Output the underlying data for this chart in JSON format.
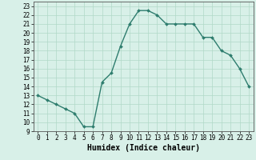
{
  "x": [
    0,
    1,
    2,
    3,
    4,
    5,
    6,
    7,
    8,
    9,
    10,
    11,
    12,
    13,
    14,
    15,
    16,
    17,
    18,
    19,
    20,
    21,
    22,
    23
  ],
  "y": [
    13,
    12.5,
    12,
    11.5,
    11,
    9.5,
    9.5,
    14.5,
    15.5,
    18.5,
    21,
    22.5,
    22.5,
    22,
    21,
    21,
    21,
    21,
    19.5,
    19.5,
    18,
    17.5,
    16,
    14
  ],
  "xlim": [
    -0.5,
    23.5
  ],
  "ylim": [
    9,
    23.5
  ],
  "yticks": [
    9,
    10,
    11,
    12,
    13,
    14,
    15,
    16,
    17,
    18,
    19,
    20,
    21,
    22,
    23
  ],
  "xticks": [
    0,
    1,
    2,
    3,
    4,
    5,
    6,
    7,
    8,
    9,
    10,
    11,
    12,
    13,
    14,
    15,
    16,
    17,
    18,
    19,
    20,
    21,
    22,
    23
  ],
  "xlabel": "Humidex (Indice chaleur)",
  "line_color": "#2e7d6e",
  "marker": "D",
  "marker_size": 2,
  "line_width": 1.0,
  "bg_color": "#d8f0e8",
  "grid_color": "#b0d8c8",
  "tick_fontsize": 5.5,
  "xlabel_fontsize": 7
}
